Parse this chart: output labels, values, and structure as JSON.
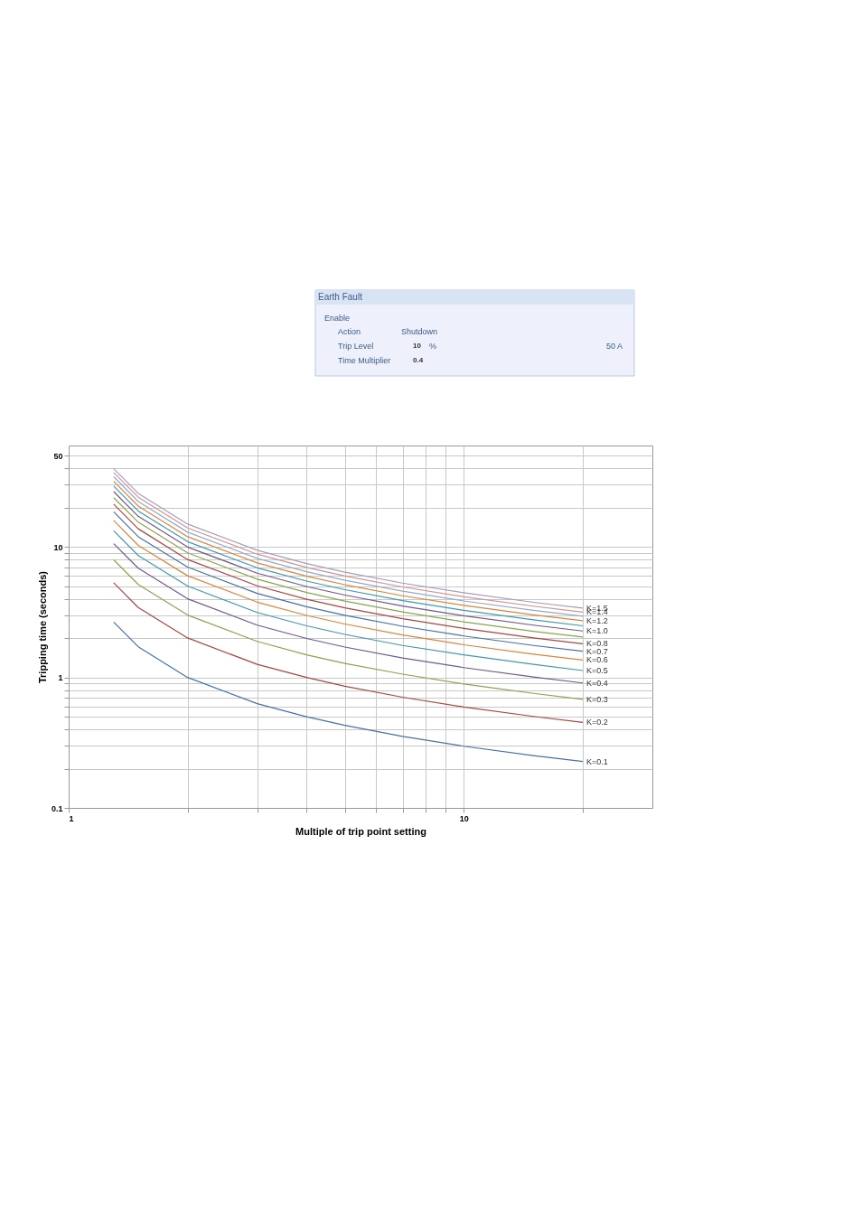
{
  "chart_data": [
    {
      "type": "other",
      "title": "Earth Fault",
      "annotations": [
        "Enable",
        "Action",
        "Shutdown",
        "Trip Level",
        "10",
        "%",
        "50 A",
        "Time Multiplier",
        "0.4"
      ]
    },
    {
      "type": "line",
      "xlabel": "Multiple of trip point setting",
      "ylabel": "Tripping time (seconds)",
      "log": "xy",
      "grid": true,
      "legend": false,
      "marker": "none",
      "line_style": "solid",
      "x": [
        1.3,
        1.5,
        2,
        3,
        4,
        5,
        7,
        10,
        15,
        20
      ],
      "xlim": [
        1,
        30
      ],
      "xticks": [
        1,
        {
          "value": 2,
          "label": null
        },
        {
          "value": 3,
          "label": null
        },
        {
          "value": 4,
          "label": null
        },
        {
          "value": 5,
          "label": null
        },
        {
          "value": 6,
          "label": null
        },
        {
          "value": 7,
          "label": null
        },
        {
          "value": 8,
          "label": null
        },
        {
          "value": 9,
          "label": null
        },
        10,
        {
          "value": 20,
          "label": null
        }
      ],
      "ylim": [
        0.1,
        60
      ],
      "yticks": [
        0.1,
        {
          "value": 0.2,
          "label": null
        },
        {
          "value": 0.3,
          "label": null
        },
        {
          "value": 0.4,
          "label": null
        },
        {
          "value": 0.5,
          "label": null
        },
        {
          "value": 0.6,
          "label": null
        },
        {
          "value": 0.7,
          "label": null
        },
        {
          "value": 0.8,
          "label": null
        },
        {
          "value": 0.9,
          "label": null
        },
        1,
        {
          "value": 2,
          "label": null
        },
        {
          "value": 3,
          "label": null
        },
        {
          "value": 4,
          "label": null
        },
        {
          "value": 5,
          "label": null
        },
        {
          "value": 6,
          "label": null
        },
        {
          "value": 7,
          "label": null
        },
        {
          "value": 8,
          "label": null
        },
        {
          "value": 9,
          "label": null
        },
        10,
        {
          "value": 20,
          "label": null
        },
        {
          "value": 30,
          "label": null
        },
        {
          "value": 40,
          "label": null
        },
        50
      ],
      "series": [
        {
          "name": "K=0.1",
          "color": "#4572a7",
          "values": [
            2.66,
            1.72,
            1.0,
            0.63,
            0.5,
            0.43,
            0.353,
            0.297,
            0.252,
            0.227
          ]
        },
        {
          "name": "K=0.2",
          "color": "#aa4643",
          "values": [
            5.32,
            3.44,
            2.01,
            1.26,
            1.0,
            0.856,
            0.706,
            0.594,
            0.503,
            0.453
          ]
        },
        {
          "name": "K=0.3",
          "color": "#89a54e",
          "values": [
            7.98,
            5.16,
            3.01,
            1.89,
            1.49,
            1.28,
            1.06,
            0.891,
            0.755,
            0.68
          ]
        },
        {
          "name": "K=0.4",
          "color": "#71588f",
          "values": [
            10.6,
            6.88,
            4.01,
            2.52,
            1.99,
            1.71,
            1.41,
            1.19,
            1.01,
            0.907
          ]
        },
        {
          "name": "K=0.5",
          "color": "#4198af",
          "values": [
            13.3,
            8.6,
            5.02,
            3.15,
            2.49,
            2.14,
            1.76,
            1.49,
            1.26,
            1.13
          ]
        },
        {
          "name": "K=0.6",
          "color": "#db843d",
          "values": [
            16.0,
            10.3,
            6.02,
            3.78,
            2.99,
            2.57,
            2.12,
            1.78,
            1.51,
            1.36
          ]
        },
        {
          "name": "K=0.7",
          "color": "#4572a7",
          "values": [
            18.6,
            12.0,
            7.02,
            4.41,
            3.49,
            3.0,
            2.47,
            2.08,
            1.76,
            1.59
          ]
        },
        {
          "name": "K=0.8",
          "color": "#aa4643",
          "values": [
            21.3,
            13.8,
            8.02,
            5.04,
            3.98,
            3.42,
            2.82,
            2.38,
            2.01,
            1.81
          ]
        },
        {
          "color": "#89a54e",
          "values": [
            23.9,
            15.5,
            9.03,
            5.67,
            4.48,
            3.85,
            3.18,
            2.67,
            2.26,
            2.04
          ]
        },
        {
          "name": "K=1.0",
          "color": "#71588f",
          "values": [
            26.6,
            17.2,
            10.0,
            6.3,
            4.98,
            4.28,
            3.53,
            2.97,
            2.52,
            2.27
          ]
        },
        {
          "color": "#4198af",
          "values": [
            29.3,
            18.9,
            11.0,
            6.93,
            5.48,
            4.71,
            3.88,
            3.27,
            2.77,
            2.49
          ]
        },
        {
          "name": "K=1.2",
          "color": "#db843d",
          "values": [
            31.9,
            20.6,
            12.0,
            7.56,
            5.98,
            5.14,
            4.23,
            3.57,
            3.02,
            2.72
          ]
        },
        {
          "color": "#93a9cf",
          "values": [
            34.6,
            22.3,
            13.0,
            8.19,
            6.47,
            5.56,
            4.59,
            3.86,
            3.27,
            2.95
          ]
        },
        {
          "name": "K=1.4",
          "color": "#d19392",
          "values": [
            37.3,
            24.1,
            14.0,
            8.82,
            6.97,
            5.99,
            4.94,
            4.16,
            3.52,
            3.17
          ]
        },
        {
          "name": "K=1.5",
          "color": "#a99bbd",
          "values": [
            39.9,
            25.8,
            15.0,
            9.45,
            7.47,
            6.42,
            5.29,
            4.46,
            3.77,
            3.4
          ]
        }
      ]
    }
  ]
}
